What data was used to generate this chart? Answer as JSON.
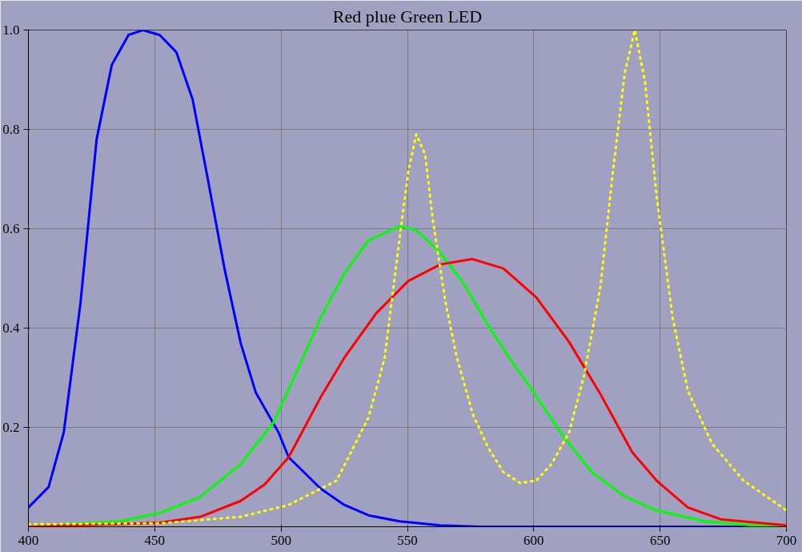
{
  "chart_data": {
    "type": "line",
    "title": "Red plue Green LED",
    "xlim": [
      400,
      700
    ],
    "ylim": [
      0,
      1.0
    ],
    "xticks": [
      400,
      450,
      500,
      550,
      600,
      650,
      700
    ],
    "yticks": [
      0.2,
      0.4,
      0.6,
      0.8,
      {
        "value": 1,
        "label": "1.0"
      }
    ],
    "grid": true,
    "marker": "none",
    "series": [
      {
        "color": "#0000ff",
        "line_style": "solid",
        "x": [
          400,
          408,
          414,
          420.6,
          427,
          433,
          439.6,
          445.3,
          452,
          458.6,
          465,
          471,
          477.6,
          484,
          490,
          499,
          503,
          509,
          515.6,
          525,
          534.6,
          547,
          563,
          579,
          700
        ],
        "values": [
          0.039,
          0.08,
          0.19,
          0.45,
          0.78,
          0.93,
          0.99,
          1.0,
          0.99,
          0.955,
          0.86,
          0.7,
          0.52,
          0.37,
          0.27,
          0.19,
          0.14,
          0.11,
          0.077,
          0.044,
          0.023,
          0.011,
          0.003,
          0,
          0
        ]
      },
      {
        "color": "#00ff00",
        "line_style": "solid",
        "x": [
          400,
          436,
          452,
          468,
          484,
          497,
          506,
          515.6,
          525,
          534.6,
          547,
          553.5,
          563,
          572.6,
          582,
          591.7,
          599.5,
          610.6,
          623,
          636,
          648.6,
          667.6,
          686.6,
          700
        ],
        "values": [
          0,
          0.011,
          0.028,
          0.06,
          0.126,
          0.21,
          0.31,
          0.42,
          0.51,
          0.577,
          0.605,
          0.597,
          0.552,
          0.487,
          0.405,
          0.33,
          0.274,
          0.19,
          0.11,
          0.061,
          0.033,
          0.011,
          0.003,
          0
        ]
      },
      {
        "color": "#ff0000",
        "line_style": "solid",
        "x": [
          400,
          452,
          468,
          484,
          493.5,
          503,
          515.6,
          525,
          537.7,
          550.4,
          563,
          575.7,
          588,
          601,
          614,
          626.5,
          639,
          648.6,
          661,
          674,
          700
        ],
        "values": [
          0,
          0.008,
          0.02,
          0.052,
          0.085,
          0.14,
          0.26,
          0.34,
          0.43,
          0.495,
          0.528,
          0.539,
          0.52,
          0.462,
          0.372,
          0.266,
          0.15,
          0.093,
          0.039,
          0.015,
          0.003
        ]
      },
      {
        "color": "#ffff00",
        "line_style": "dotted",
        "x": [
          400,
          452,
          484,
          503,
          522,
          534.6,
          541,
          547,
          550.4,
          553.5,
          557,
          560,
          565,
          569.6,
          576,
          582,
          588,
          594.6,
          601,
          607,
          614,
          620,
          626.5,
          631,
          636,
          640,
          644,
          648.6,
          655,
          661,
          670.6,
          683,
          700
        ],
        "values": [
          0.005,
          0.007,
          0.02,
          0.044,
          0.093,
          0.22,
          0.34,
          0.585,
          0.716,
          0.79,
          0.75,
          0.62,
          0.454,
          0.34,
          0.225,
          0.159,
          0.11,
          0.088,
          0.093,
          0.126,
          0.19,
          0.306,
          0.487,
          0.7,
          0.913,
          1.0,
          0.897,
          0.667,
          0.42,
          0.274,
          0.167,
          0.093,
          0.033
        ]
      }
    ]
  }
}
